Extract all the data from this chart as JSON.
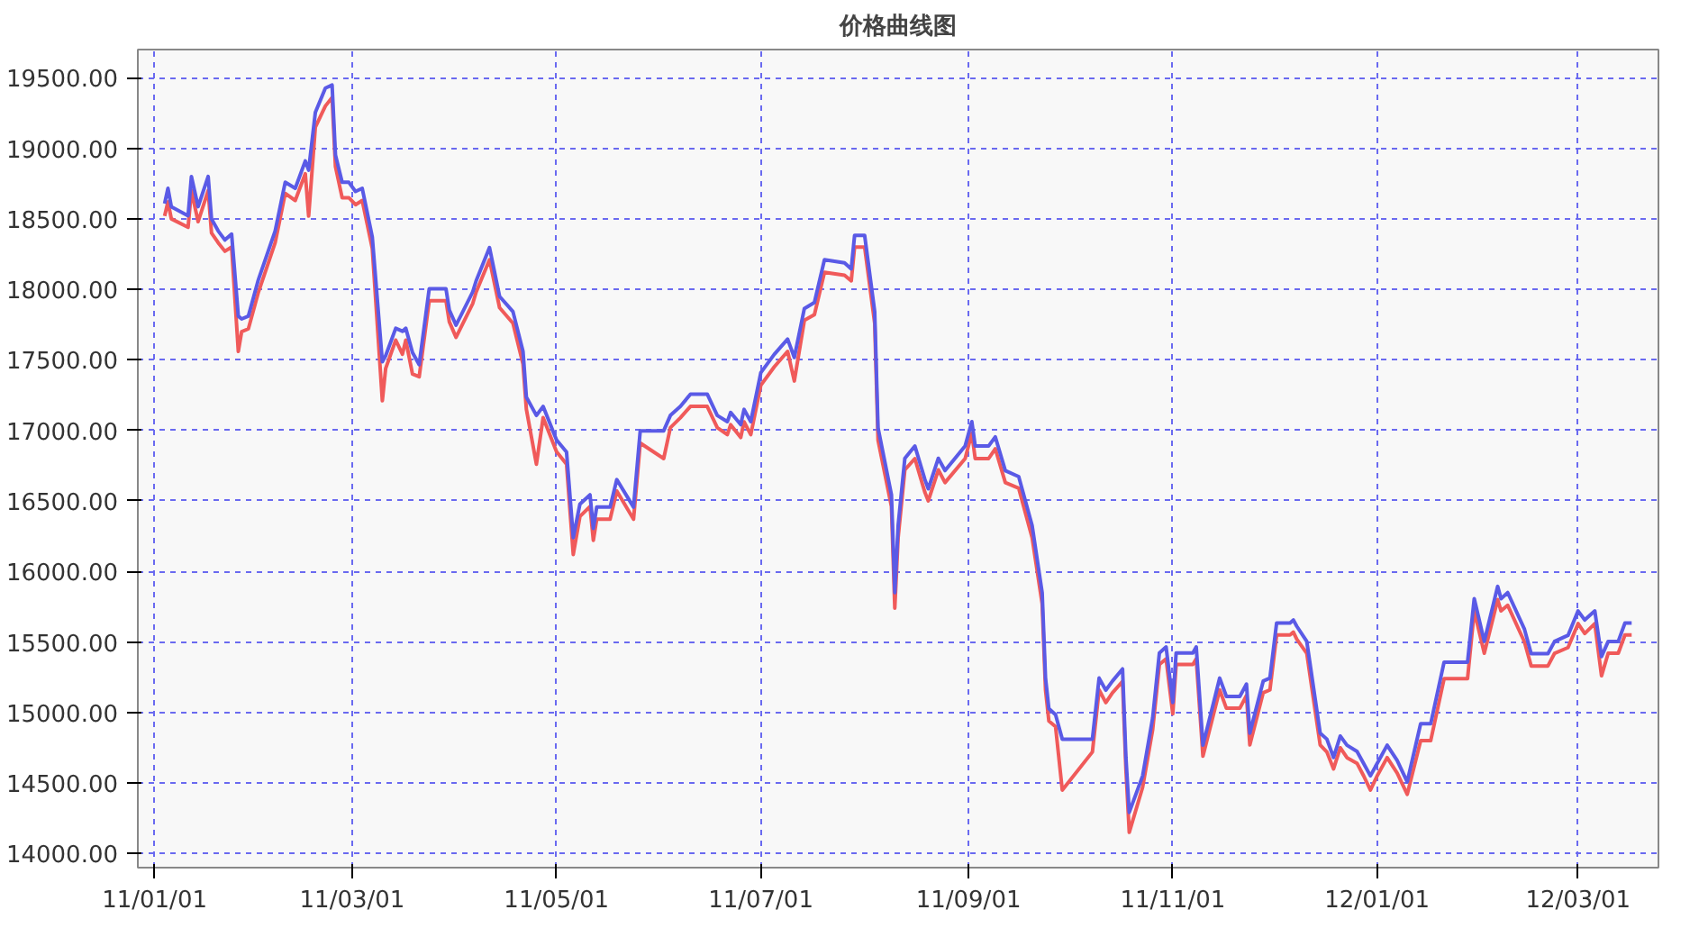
{
  "chart_data": {
    "type": "line",
    "title": "价格曲线图",
    "x": [
      "2011-01-04",
      "2011-01-05",
      "2011-01-06",
      "2011-01-11",
      "2011-01-12",
      "2011-01-14",
      "2011-01-17",
      "2011-01-18",
      "2011-01-20",
      "2011-01-22",
      "2011-01-24",
      "2011-01-26",
      "2011-01-27",
      "2011-01-29",
      "2011-02-01",
      "2011-02-06",
      "2011-02-09",
      "2011-02-12",
      "2011-02-15",
      "2011-02-16",
      "2011-02-18",
      "2011-02-21",
      "2011-02-23",
      "2011-02-24",
      "2011-02-26",
      "2011-02-28",
      "2011-03-02",
      "2011-03-04",
      "2011-03-07",
      "2011-03-10",
      "2011-03-11",
      "2011-03-14",
      "2011-03-16",
      "2011-03-17",
      "2011-03-19",
      "2011-03-21",
      "2011-03-24",
      "2011-03-29",
      "2011-03-30",
      "2011-04-01",
      "2011-04-06",
      "2011-04-07",
      "2011-04-11",
      "2011-04-14",
      "2011-04-18",
      "2011-04-21",
      "2011-04-22",
      "2011-04-25",
      "2011-04-27",
      "2011-05-01",
      "2011-05-04",
      "2011-05-06",
      "2011-05-08",
      "2011-05-11",
      "2011-05-12",
      "2011-05-13",
      "2011-05-17",
      "2011-05-19",
      "2011-05-24",
      "2011-05-26",
      "2011-06-02",
      "2011-06-04",
      "2011-06-07",
      "2011-06-10",
      "2011-06-15",
      "2011-06-18",
      "2011-06-21",
      "2011-06-22",
      "2011-06-25",
      "2011-06-26",
      "2011-06-28",
      "2011-07-01",
      "2011-07-05",
      "2011-07-09",
      "2011-07-11",
      "2011-07-14",
      "2011-07-17",
      "2011-07-20",
      "2011-07-26",
      "2011-07-28",
      "2011-07-29",
      "2011-08-01",
      "2011-08-04",
      "2011-08-05",
      "2011-08-09",
      "2011-08-10",
      "2011-08-11",
      "2011-08-13",
      "2011-08-16",
      "2011-08-19",
      "2011-08-20",
      "2011-08-23",
      "2011-08-25",
      "2011-08-31",
      "2011-09-02",
      "2011-09-03",
      "2011-09-07",
      "2011-09-09",
      "2011-09-12",
      "2011-09-16",
      "2011-09-20",
      "2011-09-23",
      "2011-09-24",
      "2011-09-25",
      "2011-09-27",
      "2011-09-29",
      "2011-10-08",
      "2011-10-10",
      "2011-10-12",
      "2011-10-14",
      "2011-10-17",
      "2011-10-18",
      "2011-10-19",
      "2011-10-23",
      "2011-10-26",
      "2011-10-28",
      "2011-10-30",
      "2011-11-01",
      "2011-11-02",
      "2011-11-07",
      "2011-11-08",
      "2011-11-10",
      "2011-11-15",
      "2011-11-17",
      "2011-11-21",
      "2011-11-23",
      "2011-11-24",
      "2011-11-28",
      "2011-11-30",
      "2011-12-02",
      "2011-12-06",
      "2011-12-07",
      "2011-12-08",
      "2011-12-11",
      "2011-12-15",
      "2011-12-17",
      "2011-12-19",
      "2011-12-21",
      "2011-12-23",
      "2011-12-26",
      "2011-12-28",
      "2011-12-30",
      "2012-01-01",
      "2012-01-04",
      "2012-01-07",
      "2012-01-10",
      "2012-01-14",
      "2012-01-17",
      "2012-01-21",
      "2012-01-28",
      "2012-01-30",
      "2012-02-02",
      "2012-02-06",
      "2012-02-07",
      "2012-02-09",
      "2012-02-14",
      "2012-02-16",
      "2012-02-21",
      "2012-02-23",
      "2012-02-27",
      "2012-03-01",
      "2012-03-03",
      "2012-03-06",
      "2012-03-08",
      "2012-03-10",
      "2012-03-13",
      "2012-03-15",
      "2012-03-17"
    ],
    "series": [
      {
        "color": "#f05a5a",
        "values": [
          18520,
          18620,
          18500,
          18440,
          18700,
          18480,
          18700,
          18400,
          18330,
          18270,
          18300,
          17560,
          17700,
          17720,
          17980,
          18330,
          18680,
          18630,
          18820,
          18520,
          19150,
          19300,
          19360,
          18870,
          18650,
          18650,
          18600,
          18630,
          18290,
          17210,
          17440,
          17640,
          17540,
          17640,
          17400,
          17380,
          17920,
          17920,
          17770,
          17660,
          17900,
          17980,
          18210,
          17870,
          17760,
          17470,
          17150,
          16760,
          17090,
          16850,
          16760,
          16120,
          16390,
          16460,
          16220,
          16370,
          16370,
          16570,
          16370,
          16910,
          16800,
          17020,
          17090,
          17170,
          17170,
          17020,
          16970,
          17040,
          16950,
          17060,
          16970,
          17320,
          17450,
          17560,
          17350,
          17780,
          17820,
          18120,
          18100,
          18060,
          18300,
          18300,
          17760,
          16930,
          16460,
          15740,
          16240,
          16720,
          16800,
          16560,
          16500,
          16720,
          16630,
          16800,
          16980,
          16800,
          16800,
          16870,
          16630,
          16590,
          16240,
          15770,
          15160,
          14940,
          14900,
          14450,
          14720,
          15160,
          15070,
          15140,
          15220,
          14600,
          14150,
          14470,
          14880,
          15340,
          15380,
          14990,
          15340,
          15340,
          15380,
          14690,
          15160,
          15030,
          15030,
          15120,
          14770,
          15140,
          15160,
          15550,
          15550,
          15570,
          15520,
          15420,
          14770,
          14720,
          14600,
          14750,
          14680,
          14640,
          14550,
          14450,
          14550,
          14680,
          14570,
          14420,
          14800,
          14800,
          15240,
          15240,
          15720,
          15420,
          15800,
          15720,
          15760,
          15500,
          15330,
          15330,
          15420,
          15460,
          15630,
          15560,
          15630,
          15260,
          15420,
          15420,
          15550,
          15550
        ]
      },
      {
        "color": "#5a5ae6",
        "values": [
          18608,
          18716,
          18586,
          18522,
          18800,
          18586,
          18800,
          18500,
          18414,
          18350,
          18392,
          17810,
          17790,
          17810,
          18069,
          18414,
          18759,
          18716,
          18910,
          18845,
          19254,
          19427,
          19448,
          18953,
          18759,
          18759,
          18694,
          18716,
          18371,
          17487,
          17530,
          17724,
          17703,
          17724,
          17552,
          17466,
          18004,
          18004,
          17854,
          17746,
          17983,
          18060,
          18296,
          17950,
          17842,
          17560,
          17236,
          17106,
          17170,
          16932,
          16846,
          16240,
          16478,
          16543,
          16305,
          16456,
          16456,
          16651,
          16456,
          16997,
          16997,
          17106,
          17170,
          17257,
          17257,
          17106,
          17062,
          17127,
          17041,
          17149,
          17062,
          17409,
          17539,
          17647,
          17517,
          17864,
          17907,
          18210,
          18188,
          18145,
          18383,
          18383,
          17842,
          17018,
          16543,
          15850,
          16326,
          16802,
          16889,
          16651,
          16586,
          16802,
          16715,
          16889,
          17062,
          16889,
          16889,
          16954,
          16715,
          16672,
          16326,
          15850,
          15244,
          15028,
          14984,
          14811,
          14811,
          15244,
          15158,
          15223,
          15309,
          14681,
          14292,
          14551,
          14963,
          15422,
          15465,
          15071,
          15422,
          15422,
          15465,
          14768,
          15244,
          15114,
          15114,
          15201,
          14854,
          15223,
          15244,
          15634,
          15634,
          15656,
          15612,
          15504,
          14854,
          14811,
          14681,
          14833,
          14768,
          14724,
          14638,
          14551,
          14638,
          14768,
          14659,
          14508,
          14920,
          14920,
          15357,
          15357,
          15807,
          15504,
          15894,
          15807,
          15850,
          15590,
          15417,
          15417,
          15504,
          15547,
          15720,
          15656,
          15720,
          15396,
          15504,
          15504,
          15634,
          15634
        ]
      }
    ],
    "xlim": [
      "2010-12-27",
      "2012-03-25"
    ],
    "xticks": [
      {
        "value": "2011-01-01",
        "label": "11/01/01"
      },
      {
        "value": "2011-03-01",
        "label": "11/03/01"
      },
      {
        "value": "2011-05-01",
        "label": "11/05/01"
      },
      {
        "value": "2011-07-01",
        "label": "11/07/01"
      },
      {
        "value": "2011-09-01",
        "label": "11/09/01"
      },
      {
        "value": "2011-11-01",
        "label": "11/11/01"
      },
      {
        "value": "2012-01-01",
        "label": "12/01/01"
      },
      {
        "value": "2012-03-01",
        "label": "12/03/01"
      }
    ],
    "ylim": [
      13900,
      19700
    ],
    "yticks": [
      {
        "value": 14000,
        "label": "14000.00"
      },
      {
        "value": 14500,
        "label": "14500.00"
      },
      {
        "value": 15000,
        "label": "15000.00"
      },
      {
        "value": 15500,
        "label": "15500.00"
      },
      {
        "value": 16000,
        "label": "16000.00"
      },
      {
        "value": 16500,
        "label": "16500.00"
      },
      {
        "value": 17000,
        "label": "17000.00"
      },
      {
        "value": 17500,
        "label": "17500.00"
      },
      {
        "value": 18000,
        "label": "18000.00"
      },
      {
        "value": 18500,
        "label": "18500.00"
      },
      {
        "value": 19000,
        "label": "19000.00"
      },
      {
        "value": 19500,
        "label": "19500.00"
      }
    ],
    "grid": true,
    "line_style": "solid"
  }
}
